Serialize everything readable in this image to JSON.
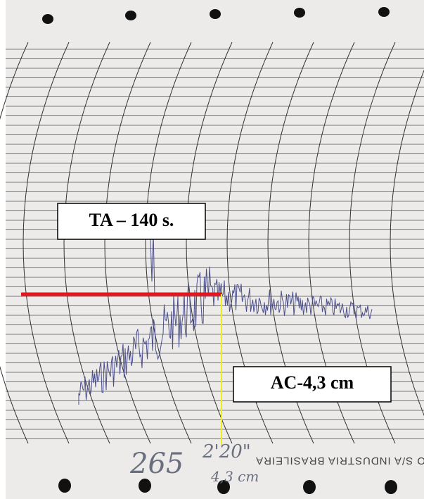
{
  "annotations": {
    "ta": "TA – 140 s.",
    "ac": "AC-4,3 cm"
  },
  "handwriting": {
    "number": "265",
    "time": "2'20\"",
    "distance": "4,3 cm"
  },
  "paper_print": "O S/A INDUSTRIA BRASILEIRA"
}
